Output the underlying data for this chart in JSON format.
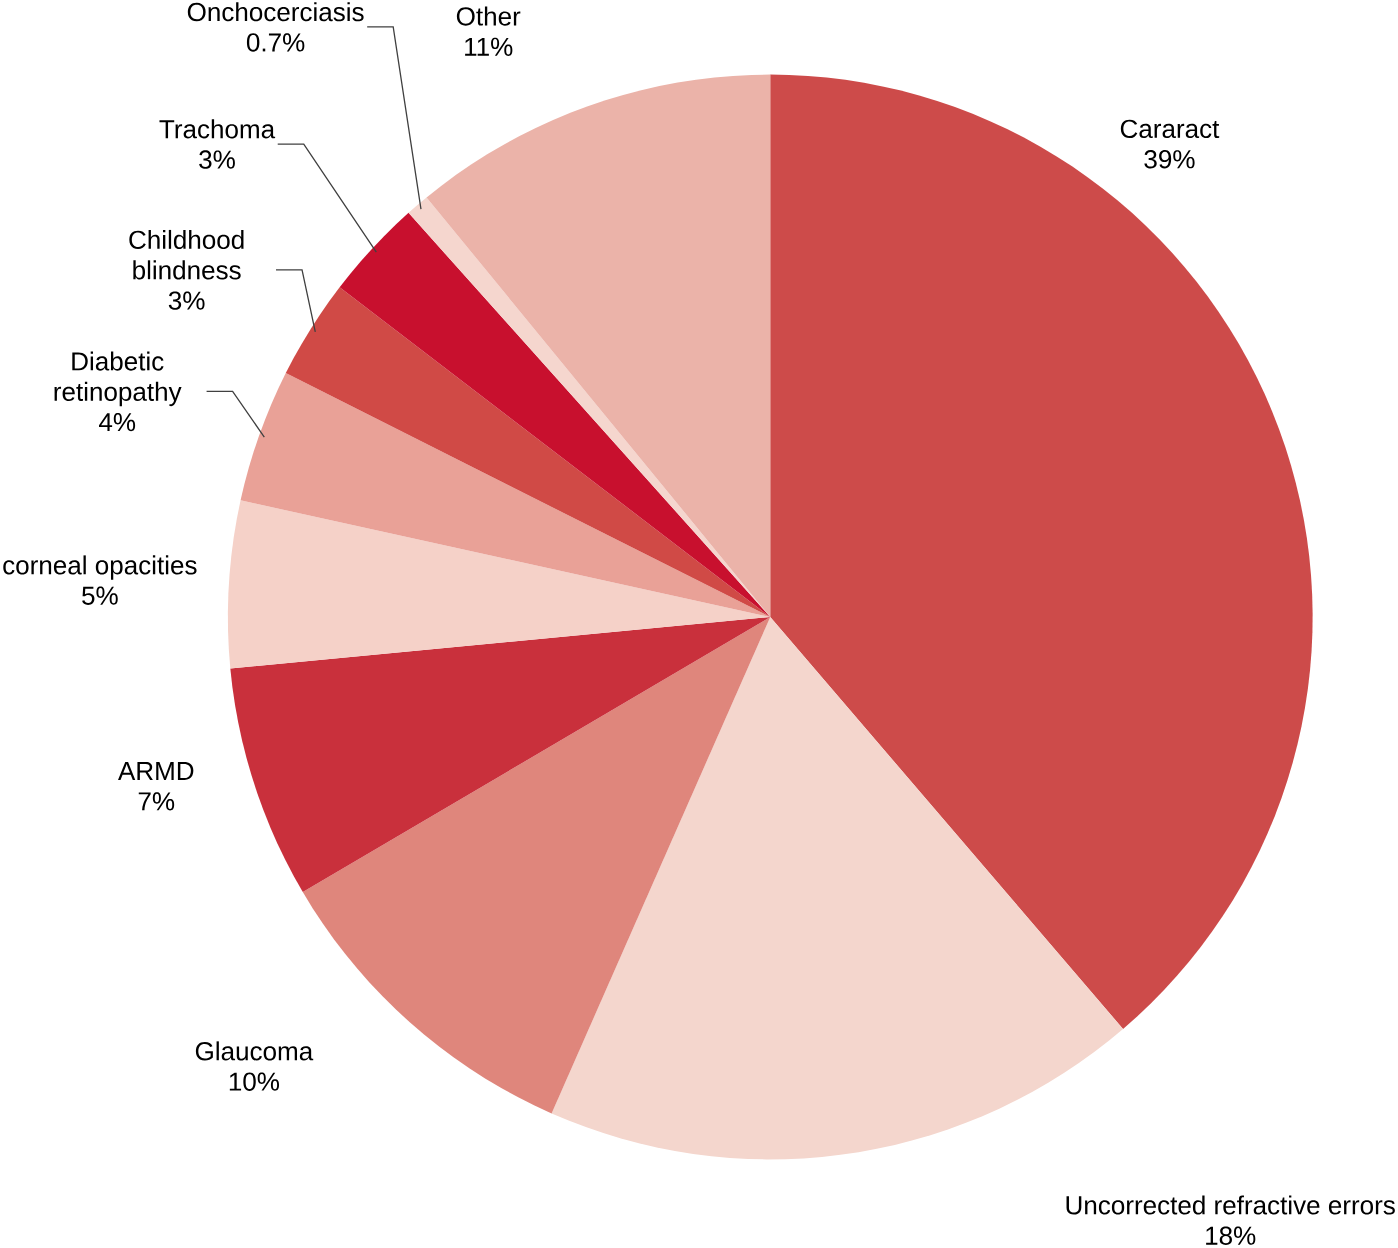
{
  "chart_data": {
    "type": "pie",
    "categories": [
      "Cararact",
      "Uncorrected refractive errors",
      "Glaucoma",
      "ARMD",
      "corneal opacities",
      "Diabetic retinopathy",
      "Childhood blindness",
      "Trachoma",
      "Onchocerciasis",
      "Other"
    ],
    "values": [
      39,
      18,
      10,
      7,
      5,
      4,
      3,
      3,
      0.7,
      11
    ],
    "value_labels": [
      "39%",
      "18%",
      "10%",
      "7%",
      "5%",
      "4%",
      "3%",
      "3%",
      "0.7%",
      "11%"
    ],
    "colors": [
      "#cd4b4a",
      "#f4d6cd",
      "#df867c",
      "#c9303c",
      "#f5d1c8",
      "#e9a197",
      "#d04a46",
      "#c8102e",
      "#f5d6ce",
      "#ebb3a9"
    ]
  }
}
